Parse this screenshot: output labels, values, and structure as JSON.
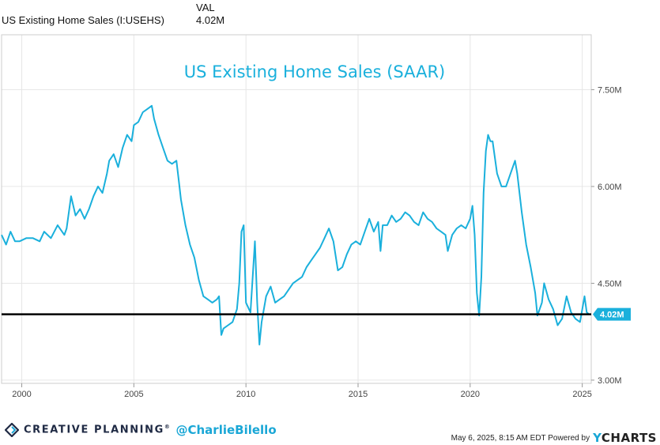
{
  "legend": {
    "series_label": "US Existing Home Sales (I:USEHS)",
    "value_header": "VAL",
    "value": "4.02M"
  },
  "footer": {
    "brand": "CREATIVE PLANNING",
    "brand_mark": "®",
    "handle": "@CharlieBilello",
    "timestamp": "May 6, 2025, 8:15 AM EDT Powered by",
    "powered_by_y": "Y",
    "powered_by_rest": "CHARTS"
  },
  "colors": {
    "line": "#1ab0dc",
    "reference_line": "#000000",
    "grid": "#e6e6e6",
    "title": "#1ab0dc",
    "badge": "#1ab0dc"
  },
  "chart_data": {
    "type": "line",
    "title": "US Existing Home Sales (SAAR)",
    "xlabel": "",
    "ylabel": "",
    "xlim": [
      1999.1,
      2025.4
    ],
    "ylim": [
      2.95,
      8.35
    ],
    "x_ticks": [
      2000,
      2005,
      2010,
      2015,
      2020,
      2025
    ],
    "x_tick_labels": [
      "2000",
      "2005",
      "2010",
      "2015",
      "2020",
      "2025"
    ],
    "y_ticks": [
      3.0,
      4.5,
      6.0,
      7.5
    ],
    "y_tick_labels": [
      "3.00M",
      "4.50M",
      "6.00M",
      "7.50M"
    ],
    "grid": true,
    "reference_line": {
      "value": 4.02,
      "label": "4.02M"
    },
    "series": [
      {
        "units": "millions",
        "points": [
          [
            1999.1,
            5.25
          ],
          [
            1999.3,
            5.1
          ],
          [
            1999.5,
            5.3
          ],
          [
            1999.7,
            5.15
          ],
          [
            1999.9,
            5.15
          ],
          [
            2000.2,
            5.2
          ],
          [
            2000.5,
            5.2
          ],
          [
            2000.8,
            5.15
          ],
          [
            2001.0,
            5.3
          ],
          [
            2001.3,
            5.2
          ],
          [
            2001.6,
            5.4
          ],
          [
            2001.9,
            5.25
          ],
          [
            2002.0,
            5.35
          ],
          [
            2002.2,
            5.85
          ],
          [
            2002.4,
            5.55
          ],
          [
            2002.6,
            5.65
          ],
          [
            2002.8,
            5.5
          ],
          [
            2003.0,
            5.65
          ],
          [
            2003.2,
            5.85
          ],
          [
            2003.4,
            6.0
          ],
          [
            2003.6,
            5.9
          ],
          [
            2003.8,
            6.2
          ],
          [
            2003.9,
            6.4
          ],
          [
            2004.1,
            6.5
          ],
          [
            2004.3,
            6.3
          ],
          [
            2004.5,
            6.6
          ],
          [
            2004.7,
            6.8
          ],
          [
            2004.9,
            6.7
          ],
          [
            2005.0,
            6.95
          ],
          [
            2005.2,
            7.0
          ],
          [
            2005.4,
            7.15
          ],
          [
            2005.6,
            7.2
          ],
          [
            2005.8,
            7.25
          ],
          [
            2005.9,
            7.05
          ],
          [
            2006.1,
            6.8
          ],
          [
            2006.3,
            6.6
          ],
          [
            2006.5,
            6.4
          ],
          [
            2006.7,
            6.35
          ],
          [
            2006.9,
            6.4
          ],
          [
            2007.0,
            6.1
          ],
          [
            2007.1,
            5.8
          ],
          [
            2007.3,
            5.4
          ],
          [
            2007.5,
            5.1
          ],
          [
            2007.7,
            4.9
          ],
          [
            2007.9,
            4.55
          ],
          [
            2008.1,
            4.3
          ],
          [
            2008.3,
            4.25
          ],
          [
            2008.5,
            4.2
          ],
          [
            2008.7,
            4.25
          ],
          [
            2008.8,
            4.3
          ],
          [
            2008.9,
            3.7
          ],
          [
            2009.0,
            3.8
          ],
          [
            2009.2,
            3.85
          ],
          [
            2009.4,
            3.9
          ],
          [
            2009.6,
            4.1
          ],
          [
            2009.7,
            4.5
          ],
          [
            2009.8,
            5.3
          ],
          [
            2009.9,
            5.4
          ],
          [
            2010.0,
            4.2
          ],
          [
            2010.2,
            4.05
          ],
          [
            2010.3,
            4.6
          ],
          [
            2010.4,
            5.15
          ],
          [
            2010.5,
            4.2
          ],
          [
            2010.6,
            3.55
          ],
          [
            2010.7,
            3.9
          ],
          [
            2010.9,
            4.3
          ],
          [
            2011.1,
            4.45
          ],
          [
            2011.3,
            4.2
          ],
          [
            2011.5,
            4.25
          ],
          [
            2011.7,
            4.3
          ],
          [
            2011.9,
            4.4
          ],
          [
            2012.1,
            4.5
          ],
          [
            2012.3,
            4.55
          ],
          [
            2012.5,
            4.6
          ],
          [
            2012.7,
            4.75
          ],
          [
            2012.9,
            4.85
          ],
          [
            2013.1,
            4.95
          ],
          [
            2013.3,
            5.05
          ],
          [
            2013.5,
            5.2
          ],
          [
            2013.7,
            5.35
          ],
          [
            2013.9,
            5.15
          ],
          [
            2014.1,
            4.7
          ],
          [
            2014.3,
            4.75
          ],
          [
            2014.5,
            4.95
          ],
          [
            2014.7,
            5.1
          ],
          [
            2014.9,
            5.15
          ],
          [
            2015.1,
            5.1
          ],
          [
            2015.3,
            5.3
          ],
          [
            2015.5,
            5.5
          ],
          [
            2015.7,
            5.3
          ],
          [
            2015.9,
            5.45
          ],
          [
            2016.0,
            5.0
          ],
          [
            2016.1,
            5.4
          ],
          [
            2016.3,
            5.4
          ],
          [
            2016.5,
            5.55
          ],
          [
            2016.7,
            5.45
          ],
          [
            2016.9,
            5.5
          ],
          [
            2017.1,
            5.6
          ],
          [
            2017.3,
            5.55
          ],
          [
            2017.5,
            5.45
          ],
          [
            2017.7,
            5.4
          ],
          [
            2017.9,
            5.6
          ],
          [
            2018.1,
            5.5
          ],
          [
            2018.3,
            5.45
          ],
          [
            2018.5,
            5.35
          ],
          [
            2018.7,
            5.3
          ],
          [
            2018.9,
            5.25
          ],
          [
            2019.0,
            5.0
          ],
          [
            2019.2,
            5.25
          ],
          [
            2019.4,
            5.35
          ],
          [
            2019.6,
            5.4
          ],
          [
            2019.8,
            5.35
          ],
          [
            2020.0,
            5.5
          ],
          [
            2020.1,
            5.7
          ],
          [
            2020.2,
            5.25
          ],
          [
            2020.3,
            4.35
          ],
          [
            2020.4,
            4.0
          ],
          [
            2020.5,
            4.6
          ],
          [
            2020.6,
            5.9
          ],
          [
            2020.7,
            6.55
          ],
          [
            2020.8,
            6.8
          ],
          [
            2020.9,
            6.7
          ],
          [
            2021.0,
            6.7
          ],
          [
            2021.2,
            6.2
          ],
          [
            2021.4,
            6.0
          ],
          [
            2021.6,
            6.0
          ],
          [
            2021.8,
            6.2
          ],
          [
            2022.0,
            6.4
          ],
          [
            2022.1,
            6.2
          ],
          [
            2022.3,
            5.6
          ],
          [
            2022.5,
            5.1
          ],
          [
            2022.7,
            4.75
          ],
          [
            2022.9,
            4.35
          ],
          [
            2023.0,
            4.0
          ],
          [
            2023.2,
            4.2
          ],
          [
            2023.3,
            4.5
          ],
          [
            2023.5,
            4.25
          ],
          [
            2023.7,
            4.1
          ],
          [
            2023.9,
            3.85
          ],
          [
            2024.1,
            3.95
          ],
          [
            2024.3,
            4.3
          ],
          [
            2024.5,
            4.05
          ],
          [
            2024.7,
            3.95
          ],
          [
            2024.9,
            3.9
          ],
          [
            2025.0,
            4.1
          ],
          [
            2025.1,
            4.3
          ],
          [
            2025.2,
            4.05
          ],
          [
            2025.3,
            4.02
          ]
        ]
      }
    ]
  }
}
